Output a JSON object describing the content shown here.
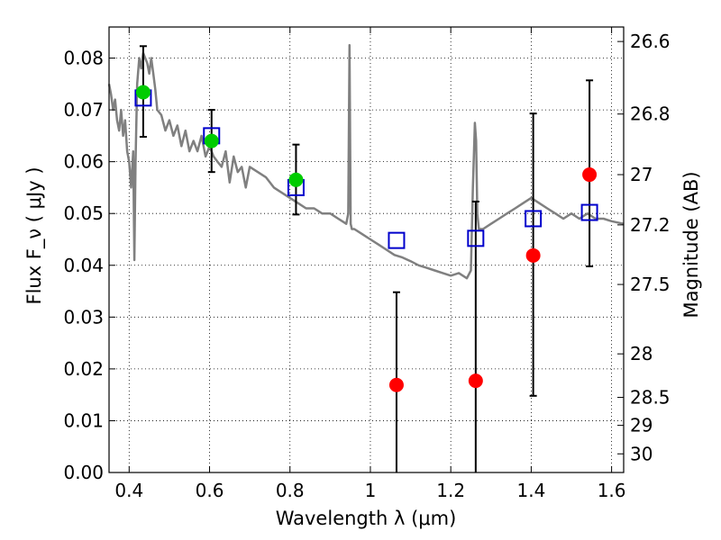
{
  "chart_data": {
    "type": "scatter",
    "xlabel": "Wavelength  λ (μm)",
    "ylabel": "Flux  F_ν  ( μJy )",
    "ylabel_right": "Magnitude (AB)",
    "xlim": [
      0.35,
      1.63
    ],
    "ylim": [
      0.0,
      0.086
    ],
    "xticks": [
      0.4,
      0.6,
      0.8,
      1.0,
      1.2,
      1.4,
      1.6
    ],
    "xtick_labels": [
      "0.4",
      "0.6",
      "0.8",
      "1",
      "1.2",
      "1.4",
      "1.6"
    ],
    "yticks": [
      0.0,
      0.01,
      0.02,
      0.03,
      0.04,
      0.05,
      0.06,
      0.07,
      0.08
    ],
    "ytick_labels": [
      "0.00",
      "0.01",
      "0.02",
      "0.03",
      "0.04",
      "0.05",
      "0.06",
      "0.07",
      "0.08"
    ],
    "right_ticks": [
      {
        "label": "26.6",
        "flux": 0.0832
      },
      {
        "label": "26.8",
        "flux": 0.0692
      },
      {
        "label": "27",
        "flux": 0.0575
      },
      {
        "label": "27.2",
        "flux": 0.0478
      },
      {
        "label": "27.5",
        "flux": 0.0363
      },
      {
        "label": "28",
        "flux": 0.0229
      },
      {
        "label": "28.5",
        "flux": 0.0145
      },
      {
        "label": "29",
        "flux": 0.0091
      },
      {
        "label": "30",
        "flux": 0.0036
      }
    ],
    "grid": true,
    "series": [
      {
        "style": "line",
        "color": "#808080",
        "x": [
          0.35,
          0.355,
          0.36,
          0.365,
          0.37,
          0.375,
          0.38,
          0.385,
          0.39,
          0.395,
          0.4,
          0.405,
          0.41,
          0.413,
          0.416,
          0.42,
          0.425,
          0.43,
          0.435,
          0.44,
          0.445,
          0.45,
          0.455,
          0.46,
          0.465,
          0.47,
          0.48,
          0.49,
          0.5,
          0.51,
          0.52,
          0.53,
          0.54,
          0.55,
          0.56,
          0.57,
          0.58,
          0.59,
          0.6,
          0.61,
          0.62,
          0.63,
          0.64,
          0.65,
          0.66,
          0.67,
          0.68,
          0.69,
          0.7,
          0.72,
          0.74,
          0.76,
          0.78,
          0.8,
          0.82,
          0.84,
          0.86,
          0.88,
          0.9,
          0.92,
          0.94,
          0.945,
          0.948,
          0.951,
          0.954,
          0.96,
          0.98,
          1.0,
          1.02,
          1.04,
          1.06,
          1.08,
          1.1,
          1.12,
          1.14,
          1.16,
          1.18,
          1.2,
          1.22,
          1.24,
          1.25,
          1.255,
          1.26,
          1.263,
          1.266,
          1.27,
          1.28,
          1.3,
          1.32,
          1.34,
          1.36,
          1.38,
          1.4,
          1.42,
          1.44,
          1.46,
          1.48,
          1.5,
          1.52,
          1.54,
          1.56,
          1.58,
          1.6,
          1.63
        ],
        "y": [
          0.075,
          0.073,
          0.07,
          0.072,
          0.068,
          0.066,
          0.07,
          0.065,
          0.068,
          0.062,
          0.06,
          0.055,
          0.062,
          0.041,
          0.06,
          0.075,
          0.08,
          0.078,
          0.081,
          0.08,
          0.079,
          0.077,
          0.08,
          0.077,
          0.074,
          0.07,
          0.069,
          0.066,
          0.068,
          0.065,
          0.067,
          0.063,
          0.066,
          0.062,
          0.064,
          0.062,
          0.065,
          0.061,
          0.063,
          0.061,
          0.06,
          0.059,
          0.062,
          0.056,
          0.061,
          0.058,
          0.059,
          0.055,
          0.059,
          0.058,
          0.057,
          0.055,
          0.054,
          0.053,
          0.052,
          0.051,
          0.051,
          0.05,
          0.05,
          0.049,
          0.048,
          0.05,
          0.0825,
          0.048,
          0.047,
          0.047,
          0.046,
          0.045,
          0.044,
          0.043,
          0.042,
          0.0415,
          0.0408,
          0.04,
          0.0395,
          0.039,
          0.0385,
          0.038,
          0.0385,
          0.0375,
          0.039,
          0.055,
          0.0675,
          0.064,
          0.05,
          0.047,
          0.047,
          0.048,
          0.049,
          0.05,
          0.051,
          0.052,
          0.053,
          0.052,
          0.051,
          0.05,
          0.049,
          0.05,
          0.049,
          0.05,
          0.049,
          0.049,
          0.0485,
          0.048
        ]
      },
      {
        "style": "square",
        "color": "#0000cc",
        "x": [
          0.435,
          0.605,
          0.815,
          1.065,
          1.262,
          1.405,
          1.545
        ],
        "y": [
          0.0723,
          0.065,
          0.055,
          0.0448,
          0.0452,
          0.049,
          0.0502
        ]
      },
      {
        "style": "circle",
        "color": "#00cc00",
        "x": [
          0.435,
          0.605,
          0.815
        ],
        "y": [
          0.0734,
          0.064,
          0.0565
        ],
        "yerr_low": [
          0.0648,
          0.058,
          0.0498
        ],
        "yerr_high": [
          0.0823,
          0.07,
          0.0633
        ]
      },
      {
        "style": "circle",
        "color": "#ff0000",
        "x": [
          1.065,
          1.262,
          1.405,
          1.545
        ],
        "y": [
          0.0169,
          0.0177,
          0.0419,
          0.0575
        ],
        "yerr_low": [
          0.0,
          0.0,
          0.0148,
          0.0398
        ],
        "yerr_high": [
          0.0348,
          0.0523,
          0.0693,
          0.0757
        ]
      }
    ]
  }
}
